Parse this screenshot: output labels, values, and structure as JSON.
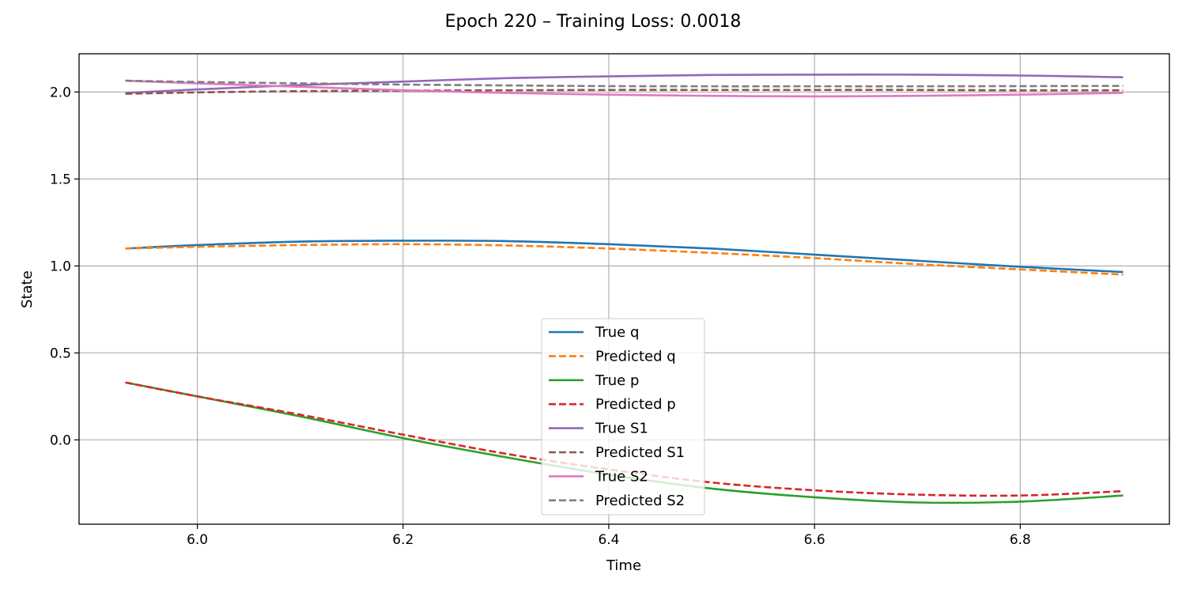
{
  "chart_data": {
    "type": "line",
    "title": "Epoch 220 – Training Loss: 0.0018",
    "xlabel": "Time",
    "ylabel": "State",
    "xlim": [
      5.885,
      6.945
    ],
    "ylim": [
      -0.485,
      2.22
    ],
    "xticks": [
      6.0,
      6.2,
      6.4,
      6.6,
      6.8
    ],
    "xtick_labels": [
      "6.0",
      "6.2",
      "6.4",
      "6.6",
      "6.8"
    ],
    "yticks": [
      0.0,
      0.5,
      1.0,
      1.5,
      2.0
    ],
    "ytick_labels": [
      "0.0",
      "0.5",
      "1.0",
      "1.5",
      "2.0"
    ],
    "grid": true,
    "legend_position": "bottom-center",
    "x": [
      5.93,
      6.0,
      6.1,
      6.2,
      6.3,
      6.4,
      6.5,
      6.6,
      6.7,
      6.8,
      6.9
    ],
    "series": [
      {
        "name": "True q",
        "color": "#1f77b4",
        "style": "solid",
        "values": [
          1.1,
          1.12,
          1.14,
          1.145,
          1.143,
          1.125,
          1.1,
          1.065,
          1.03,
          0.995,
          0.965
        ]
      },
      {
        "name": "Predicted q",
        "color": "#ff7f0e",
        "style": "dashed",
        "values": [
          1.1,
          1.11,
          1.12,
          1.125,
          1.118,
          1.1,
          1.075,
          1.045,
          1.01,
          0.98,
          0.95
        ]
      },
      {
        "name": "True p",
        "color": "#2ca02c",
        "style": "solid",
        "values": [
          0.33,
          0.25,
          0.135,
          0.01,
          -0.1,
          -0.2,
          -0.28,
          -0.33,
          -0.36,
          -0.355,
          -0.32
        ]
      },
      {
        "name": "Predicted p",
        "color": "#d62728",
        "style": "dashed",
        "values": [
          0.33,
          0.25,
          0.145,
          0.03,
          -0.08,
          -0.17,
          -0.245,
          -0.29,
          -0.315,
          -0.32,
          -0.295
        ]
      },
      {
        "name": "True S1",
        "color": "#9467bd",
        "style": "solid",
        "values": [
          1.995,
          2.015,
          2.04,
          2.06,
          2.08,
          2.09,
          2.098,
          2.1,
          2.1,
          2.095,
          2.085
        ]
      },
      {
        "name": "Predicted S1",
        "color": "#8c564b",
        "style": "dashed",
        "values": [
          1.99,
          1.998,
          2.005,
          2.008,
          2.01,
          2.012,
          2.012,
          2.012,
          2.012,
          2.01,
          2.01
        ]
      },
      {
        "name": "True S2",
        "color": "#e377c2",
        "style": "solid",
        "values": [
          2.065,
          2.05,
          2.03,
          2.01,
          1.995,
          1.985,
          1.978,
          1.975,
          1.978,
          1.985,
          1.995
        ]
      },
      {
        "name": "Predicted S2",
        "color": "#7f7f7f",
        "style": "dashed",
        "values": [
          2.065,
          2.058,
          2.05,
          2.043,
          2.038,
          2.034,
          2.033,
          2.033,
          2.033,
          2.034,
          2.035
        ]
      }
    ]
  }
}
